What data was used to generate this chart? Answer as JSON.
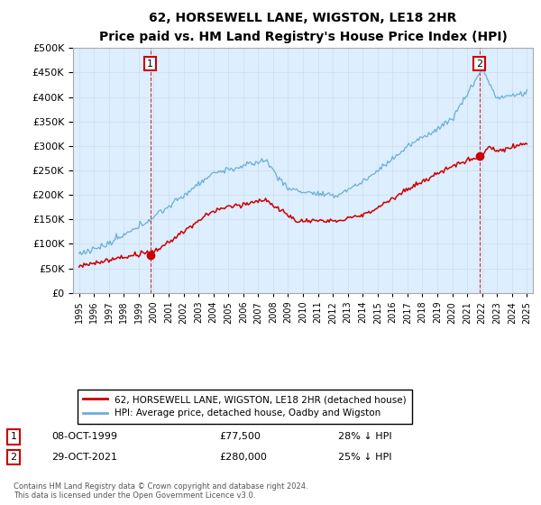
{
  "title": "62, HORSEWELL LANE, WIGSTON, LE18 2HR",
  "subtitle": "Price paid vs. HM Land Registry's House Price Index (HPI)",
  "hpi_label": "HPI: Average price, detached house, Oadby and Wigston",
  "property_label": "62, HORSEWELL LANE, WIGSTON, LE18 2HR (detached house)",
  "hpi_color": "#6baed6",
  "property_color": "#cc0000",
  "dashed_line_color": "#cc0000",
  "plot_bg_color": "#ddeeff",
  "ylim": [
    0,
    500000
  ],
  "yticks": [
    0,
    50000,
    100000,
    150000,
    200000,
    250000,
    300000,
    350000,
    400000,
    450000,
    500000
  ],
  "year_start": 1995,
  "year_end": 2025,
  "transaction1": {
    "date": "08-OCT-1999",
    "price": 77500,
    "pct": "28% ↓ HPI",
    "year": 1999.77
  },
  "transaction2": {
    "date": "29-OCT-2021",
    "price": 280000,
    "pct": "25% ↓ HPI",
    "year": 2021.82
  },
  "footnote": "Contains HM Land Registry data © Crown copyright and database right 2024.\nThis data is licensed under the Open Government Licence v3.0.",
  "background_color": "#ffffff",
  "grid_color": "#ccddee"
}
